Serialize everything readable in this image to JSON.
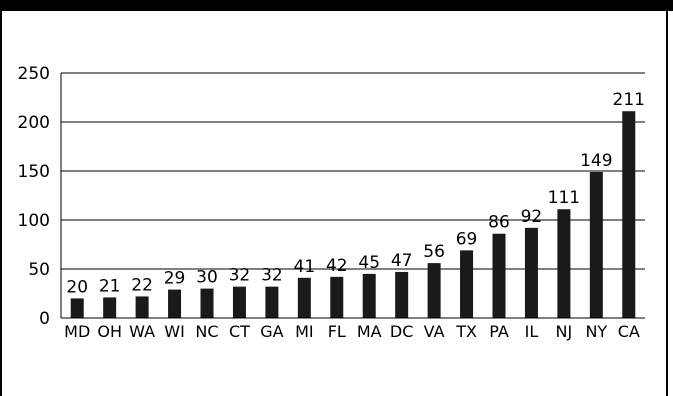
{
  "window": {
    "background": "#ffffff",
    "top_bar_color": "#000000"
  },
  "chart_data": {
    "type": "bar",
    "title": "",
    "xlabel": "",
    "ylabel": "",
    "ylim": [
      0,
      250
    ],
    "yticks": [
      0,
      50,
      100,
      150,
      200,
      250
    ],
    "grid": true,
    "legend": "none",
    "bar_color": "#1a1a1a",
    "data_labels": true,
    "categories": [
      "MD",
      "OH",
      "WA",
      "WI",
      "NC",
      "CT",
      "GA",
      "MI",
      "FL",
      "MA",
      "DC",
      "VA",
      "TX",
      "PA",
      "IL",
      "NJ",
      "NY",
      "CA"
    ],
    "values": [
      20,
      21,
      22,
      29,
      30,
      32,
      32,
      41,
      42,
      45,
      47,
      56,
      69,
      86,
      92,
      111,
      149,
      211
    ]
  }
}
